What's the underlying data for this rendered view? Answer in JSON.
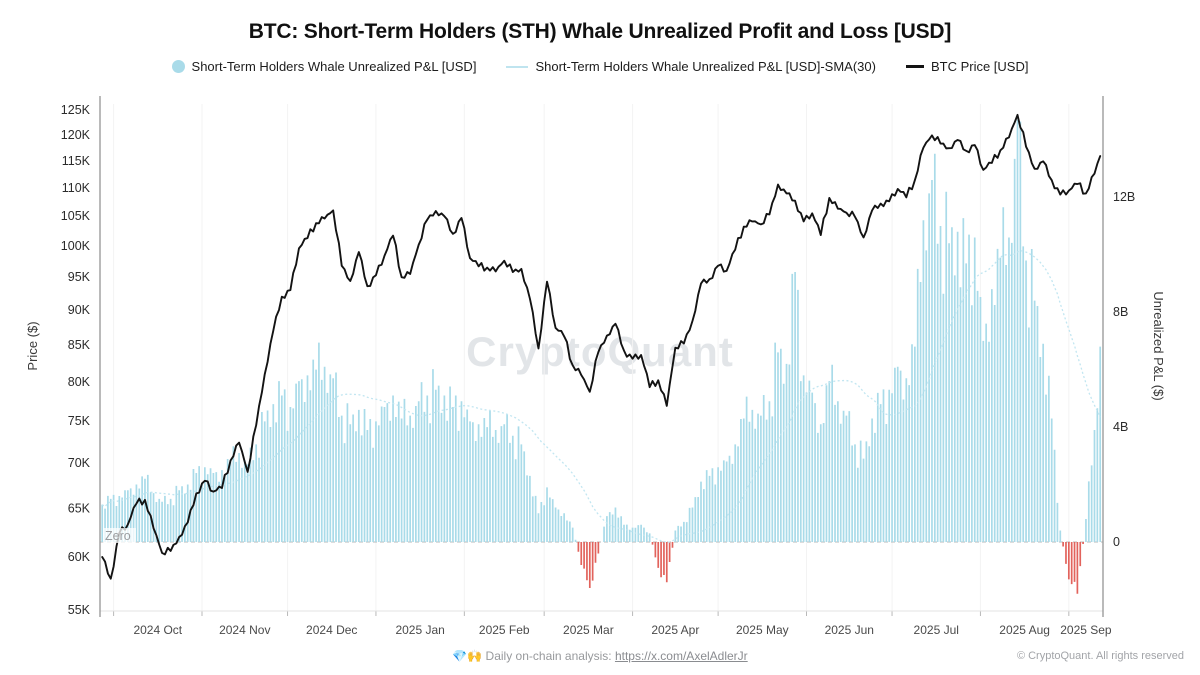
{
  "header": {
    "title": "BTC: Short-Term Holders (STH) Whale Unrealized Profit and Loss [USD]"
  },
  "legend": {
    "items": [
      {
        "label": "Short-Term Holders Whale Unrealized P&L [USD]",
        "marker": "dot",
        "color": "#a9dbe9"
      },
      {
        "label": "Short-Term Holders Whale Unrealized P&L [USD]-SMA(30)",
        "marker": "line",
        "color": "#bfe4ef"
      },
      {
        "label": "BTC Price [USD]",
        "marker": "dash",
        "color": "#131313"
      }
    ]
  },
  "chart_data": {
    "type": "mixed",
    "title": "BTC: Short-Term Holders (STH) Whale Unrealized Profit and Loss [USD]",
    "watermark": "CryptoQuant",
    "zero_label": "Zero",
    "left_axis": {
      "label": "Price ($)",
      "scale": "log",
      "ticks": [
        "55K",
        "60K",
        "65K",
        "70K",
        "75K",
        "80K",
        "85K",
        "90K",
        "95K",
        "100K",
        "105K",
        "110K",
        "115K",
        "120K",
        "125K"
      ],
      "tick_values_k": [
        55,
        60,
        65,
        70,
        75,
        80,
        85,
        90,
        95,
        100,
        105,
        110,
        115,
        120,
        125
      ]
    },
    "right_axis": {
      "label": "Unrealized P&L ($)",
      "scale": "linear",
      "ticks": [
        "0",
        "4B",
        "8B",
        "12B"
      ],
      "tick_values_b": [
        0,
        4,
        8,
        12
      ]
    },
    "x_axis": {
      "labels": [
        "2024 Oct",
        "2024 Nov",
        "2024 Dec",
        "2025 Jan",
        "2025 Feb",
        "2025 Mar",
        "2025 Apr",
        "2025 May",
        "2025 Jun",
        "2025 Jul",
        "2025 Aug",
        "2025 Sep"
      ]
    },
    "series": [
      {
        "name": "Short-Term Holders Whale Unrealized P&L [USD]",
        "type": "bar",
        "color": "#a9dbe9",
        "negative_color": "#e2635c",
        "unit": "USD billions",
        "axis": "right"
      },
      {
        "name": "Short-Term Holders Whale Unrealized P&L [USD]-SMA(30)",
        "type": "line",
        "color": "#c2e6f1",
        "derived": "30-period SMA of bar series",
        "axis": "right"
      },
      {
        "name": "BTC Price [USD]",
        "type": "line",
        "color": "#131313",
        "unit": "USD thousands",
        "axis": "left"
      }
    ],
    "dates": [
      "2024-09-27",
      "2024-09-30",
      "2024-10-03",
      "2024-10-06",
      "2024-10-09",
      "2024-10-12",
      "2024-10-15",
      "2024-10-18",
      "2024-10-21",
      "2024-10-24",
      "2024-10-27",
      "2024-10-30",
      "2024-11-02",
      "2024-11-05",
      "2024-11-08",
      "2024-11-11",
      "2024-11-14",
      "2024-11-17",
      "2024-11-20",
      "2024-11-23",
      "2024-11-26",
      "2024-11-29",
      "2024-12-02",
      "2024-12-05",
      "2024-12-08",
      "2024-12-11",
      "2024-12-14",
      "2024-12-17",
      "2024-12-20",
      "2024-12-23",
      "2024-12-26",
      "2024-12-29",
      "2025-01-01",
      "2025-01-04",
      "2025-01-07",
      "2025-01-10",
      "2025-01-13",
      "2025-01-16",
      "2025-01-19",
      "2025-01-22",
      "2025-01-25",
      "2025-01-28",
      "2025-01-31",
      "2025-02-03",
      "2025-02-06",
      "2025-02-09",
      "2025-02-12",
      "2025-02-15",
      "2025-02-18",
      "2025-02-21",
      "2025-02-24",
      "2025-02-27",
      "2025-03-02",
      "2025-03-05",
      "2025-03-08",
      "2025-03-11",
      "2025-03-14",
      "2025-03-17",
      "2025-03-20",
      "2025-03-23",
      "2025-03-26",
      "2025-03-29",
      "2025-04-01",
      "2025-04-04",
      "2025-04-07",
      "2025-04-10",
      "2025-04-13",
      "2025-04-16",
      "2025-04-19",
      "2025-04-22",
      "2025-04-25",
      "2025-04-28",
      "2025-05-01",
      "2025-05-04",
      "2025-05-07",
      "2025-05-10",
      "2025-05-13",
      "2025-05-16",
      "2025-05-19",
      "2025-05-22",
      "2025-05-25",
      "2025-05-28",
      "2025-05-31",
      "2025-06-03",
      "2025-06-06",
      "2025-06-09",
      "2025-06-12",
      "2025-06-15",
      "2025-06-18",
      "2025-06-21",
      "2025-06-24",
      "2025-06-27",
      "2025-06-30",
      "2025-07-03",
      "2025-07-06",
      "2025-07-09",
      "2025-07-12",
      "2025-07-15",
      "2025-07-18",
      "2025-07-21",
      "2025-07-24",
      "2025-07-27",
      "2025-07-30",
      "2025-08-02",
      "2025-08-05",
      "2025-08-08",
      "2025-08-11",
      "2025-08-14",
      "2025-08-17",
      "2025-08-20",
      "2025-08-23",
      "2025-08-26",
      "2025-08-29",
      "2025-09-01",
      "2025-09-04",
      "2025-09-07",
      "2025-09-10",
      "2025-09-12"
    ],
    "btc_price_usd_thousands": [
      60.0,
      57.9,
      62.4,
      63.3,
      65.5,
      65.9,
      62.9,
      60.4,
      60.6,
      62.0,
      63.5,
      66.6,
      68.0,
      66.8,
      67.2,
      70.3,
      72.4,
      69.0,
      74.5,
      81.0,
      87.0,
      92.0,
      93.0,
      99.6,
      101.3,
      103.8,
      104.6,
      106.0,
      96.8,
      94.4,
      99.0,
      93.6,
      95.3,
      98.4,
      101.7,
      95.0,
      95.5,
      100.2,
      104.4,
      105.9,
      105.0,
      102.0,
      104.7,
      98.0,
      96.7,
      96.5,
      95.9,
      97.6,
      95.8,
      96.3,
      91.7,
      84.5,
      94.3,
      87.4,
      86.2,
      82.2,
      80.9,
      78.7,
      84.0,
      86.3,
      88.0,
      84.2,
      83.1,
      83.6,
      79.3,
      80.2,
      76.9,
      84.6,
      85.2,
      88.4,
      94.0,
      94.7,
      96.8,
      96.0,
      99.4,
      103.2,
      104.1,
      103.6,
      105.3,
      110.6,
      109.0,
      107.7,
      104.1,
      105.5,
      101.8,
      108.2,
      106.3,
      105.6,
      104.9,
      101.4,
      106.0,
      107.2,
      107.6,
      109.8,
      108.3,
      111.4,
      117.5,
      119.9,
      118.3,
      117.4,
      119.0,
      116.9,
      118.0,
      113.3,
      114.6,
      117.0,
      119.5,
      124.0,
      117.7,
      113.5,
      114.9,
      111.4,
      108.8,
      109.5,
      110.7,
      109.0,
      112.6,
      115.9
    ],
    "whale_unrealized_pnl_usd_billions": [
      1.3,
      1.5,
      1.6,
      1.8,
      2.0,
      2.2,
      1.7,
      1.4,
      1.5,
      1.8,
      2.0,
      2.4,
      2.6,
      2.4,
      2.5,
      2.8,
      3.1,
      2.7,
      3.4,
      4.2,
      4.8,
      5.1,
      4.7,
      5.6,
      5.8,
      6.0,
      6.1,
      5.7,
      4.4,
      4.1,
      4.6,
      3.9,
      4.2,
      4.7,
      5.1,
      4.3,
      4.4,
      4.9,
      5.1,
      5.3,
      5.1,
      4.7,
      4.9,
      4.2,
      4.1,
      4.0,
      3.9,
      4.1,
      3.7,
      3.4,
      2.3,
      1.0,
      1.9,
      1.2,
      1.0,
      0.5,
      -0.8,
      -1.6,
      -0.4,
      0.9,
      1.2,
      0.6,
      0.5,
      0.6,
      0.3,
      -0.9,
      -1.4,
      0.4,
      0.7,
      1.2,
      2.1,
      2.3,
      2.6,
      2.8,
      3.4,
      4.3,
      4.6,
      4.4,
      4.9,
      6.6,
      6.2,
      9.4,
      5.8,
      5.2,
      4.1,
      5.6,
      4.9,
      4.4,
      3.4,
      2.9,
      4.3,
      4.8,
      5.3,
      6.1,
      5.7,
      6.8,
      11.2,
      12.6,
      11.0,
      10.4,
      10.8,
      9.7,
      10.6,
      7.0,
      8.8,
      9.9,
      10.6,
      14.7,
      9.8,
      8.4,
      6.9,
      4.3,
      0.4,
      -1.3,
      -1.8,
      0.8,
      3.9,
      6.8
    ]
  },
  "footer": {
    "emoji": "💎🙌",
    "note": " Daily on-chain analysis: ",
    "link_text": "https://x.com/AxelAdlerJr",
    "copyright": "© CryptoQuant. All rights reserved"
  }
}
